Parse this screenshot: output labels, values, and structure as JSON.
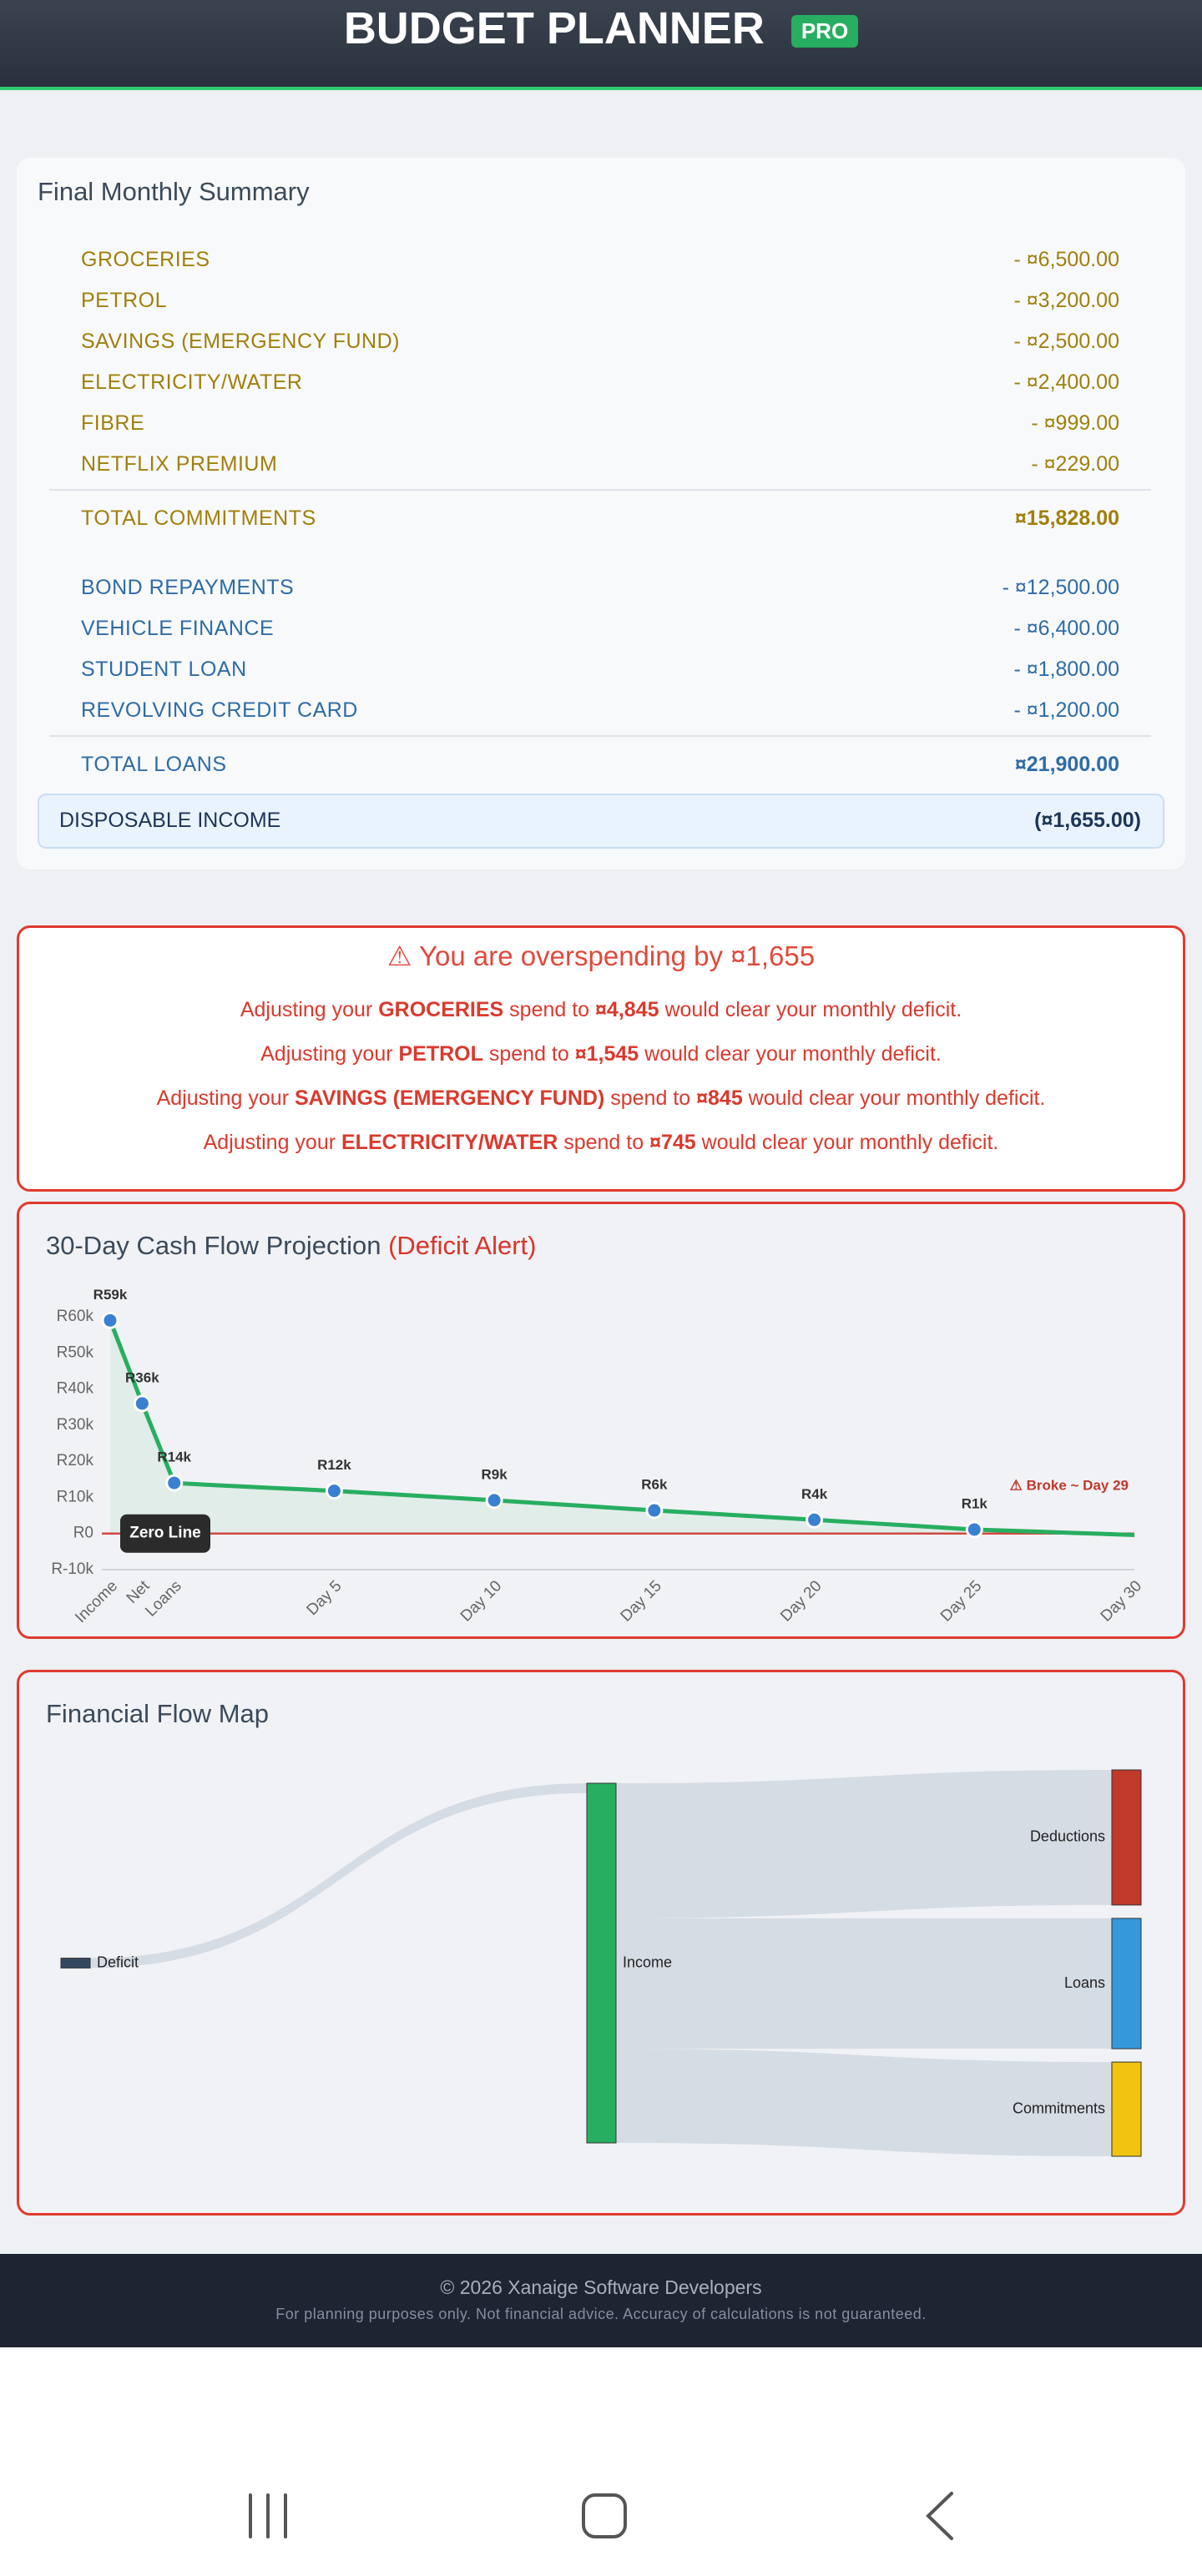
{
  "header": {
    "title": "BUDGET PLANNER",
    "badge": "PRO"
  },
  "summary": {
    "title": "Final Monthly Summary",
    "groups": [
      {
        "color": "#a0800c",
        "items": [
          {
            "label": "GROCERIES",
            "amount": "- ¤6,500.00"
          },
          {
            "label": "PETROL",
            "amount": "- ¤3,200.00"
          },
          {
            "label": "SAVINGS (EMERGENCY FUND)",
            "amount": "- ¤2,500.00"
          },
          {
            "label": "ELECTRICITY/WATER",
            "amount": "- ¤2,400.00"
          },
          {
            "label": "FIBRE",
            "amount": "- ¤999.00"
          },
          {
            "label": "NETFLIX PREMIUM",
            "amount": "- ¤229.00"
          }
        ],
        "total": {
          "label": "TOTAL COMMITMENTS",
          "amount": "¤15,828.00"
        }
      },
      {
        "color": "#2e6ca6",
        "items": [
          {
            "label": "BOND REPAYMENTS",
            "amount": "- ¤12,500.00"
          },
          {
            "label": "VEHICLE FINANCE",
            "amount": "- ¤6,400.00"
          },
          {
            "label": "STUDENT LOAN",
            "amount": "- ¤1,800.00"
          },
          {
            "label": "REVOLVING CREDIT CARD",
            "amount": "- ¤1,200.00"
          }
        ],
        "total": {
          "label": "TOTAL LOANS",
          "amount": "¤21,900.00"
        }
      }
    ],
    "disposable": {
      "label": "DISPOSABLE INCOME",
      "amount": "(¤1,655.00)"
    }
  },
  "alert": {
    "title": "⚠ You are overspending by ¤1,655",
    "lines": [
      [
        {
          "text": "Adjusting your "
        },
        {
          "text": "GROCERIES",
          "bold": true
        },
        {
          "text": " spend to "
        },
        {
          "text": "¤4,845",
          "bold": true
        },
        {
          "text": " would clear your monthly deficit."
        }
      ],
      [
        {
          "text": "Adjusting your "
        },
        {
          "text": "PETROL",
          "bold": true
        },
        {
          "text": " spend to "
        },
        {
          "text": "¤1,545",
          "bold": true
        },
        {
          "text": " would clear your monthly deficit."
        }
      ],
      [
        {
          "text": "Adjusting your "
        },
        {
          "text": "SAVINGS (EMERGENCY FUND)",
          "bold": true
        },
        {
          "text": " spend to "
        },
        {
          "text": "¤845",
          "bold": true
        },
        {
          "text": " would clear your monthly deficit."
        }
      ],
      [
        {
          "text": "Adjusting your "
        },
        {
          "text": "ELECTRICITY/WATER",
          "bold": true
        },
        {
          "text": " spend to "
        },
        {
          "text": "¤745",
          "bold": true
        },
        {
          "text": " would clear your monthly deficit."
        }
      ]
    ]
  },
  "chart_data": {
    "type": "line",
    "title": "30-Day Cash Flow Projection",
    "subtitle": "(Deficit Alert)",
    "categories": [
      "Income",
      "Net",
      "Loans",
      null,
      null,
      null,
      null,
      "Day 5",
      null,
      null,
      null,
      null,
      "Day 10",
      null,
      null,
      null,
      null,
      "Day 15",
      null,
      null,
      null,
      null,
      "Day 20",
      null,
      null,
      null,
      null,
      "Day 25",
      null,
      null,
      null,
      null,
      "Day 30"
    ],
    "values": [
      59000,
      36000,
      14000,
      13500,
      13075,
      12650,
      12225,
      11800,
      11280,
      10760,
      10240,
      9720,
      9200,
      8640,
      8080,
      7520,
      6960,
      6400,
      5880,
      5360,
      4840,
      4320,
      3800,
      3260,
      2720,
      2180,
      1640,
      1100,
      800,
      500,
      200,
      -100,
      -400
    ],
    "value_labels": [
      "R59k",
      "R36k",
      "R14k",
      null,
      null,
      null,
      null,
      "R12k",
      null,
      null,
      null,
      null,
      "R9k",
      null,
      null,
      null,
      null,
      "R6k",
      null,
      null,
      null,
      null,
      "R4k",
      null,
      null,
      null,
      null,
      "R1k",
      null,
      null,
      null,
      null,
      null
    ],
    "color": "#27ae60",
    "marker_color": "#3a7fd0",
    "ylim": [
      -10000,
      60000
    ],
    "yticks": [
      {
        "value": -10000,
        "label": "R-10k"
      },
      {
        "value": 0,
        "label": "R0"
      },
      {
        "value": 10000,
        "label": "R10k"
      },
      {
        "value": 20000,
        "label": "R20k"
      },
      {
        "value": 30000,
        "label": "R30k"
      },
      {
        "value": 40000,
        "label": "R40k"
      },
      {
        "value": 50000,
        "label": "R50k"
      },
      {
        "value": 60000,
        "label": "R60k"
      }
    ],
    "grid": false,
    "annotations": [
      "Zero Line",
      "⚠ Broke ~ Day 29"
    ]
  },
  "flow_map": {
    "title": "Financial Flow Map",
    "nodes": [
      {
        "name": "Deficit",
        "color": "#34495e"
      },
      {
        "name": "Income",
        "color": "#27ae60"
      },
      {
        "name": "Deductions",
        "color": "#c0392b"
      },
      {
        "name": "Loans",
        "color": "#3498db"
      },
      {
        "name": "Commitments",
        "color": "#f1c40f"
      }
    ],
    "links": [
      {
        "source": 0,
        "target": 1,
        "value": 1655
      },
      {
        "source": 1,
        "target": 2,
        "value": 22700
      },
      {
        "source": 1,
        "target": 3,
        "value": 21900
      },
      {
        "source": 1,
        "target": 4,
        "value": 15828
      }
    ]
  },
  "footer": {
    "copyright": "© 2026 Xanaige Software Developers",
    "disclaimer": "For planning purposes only. Not financial advice. Accuracy of calculations is not guaranteed."
  }
}
